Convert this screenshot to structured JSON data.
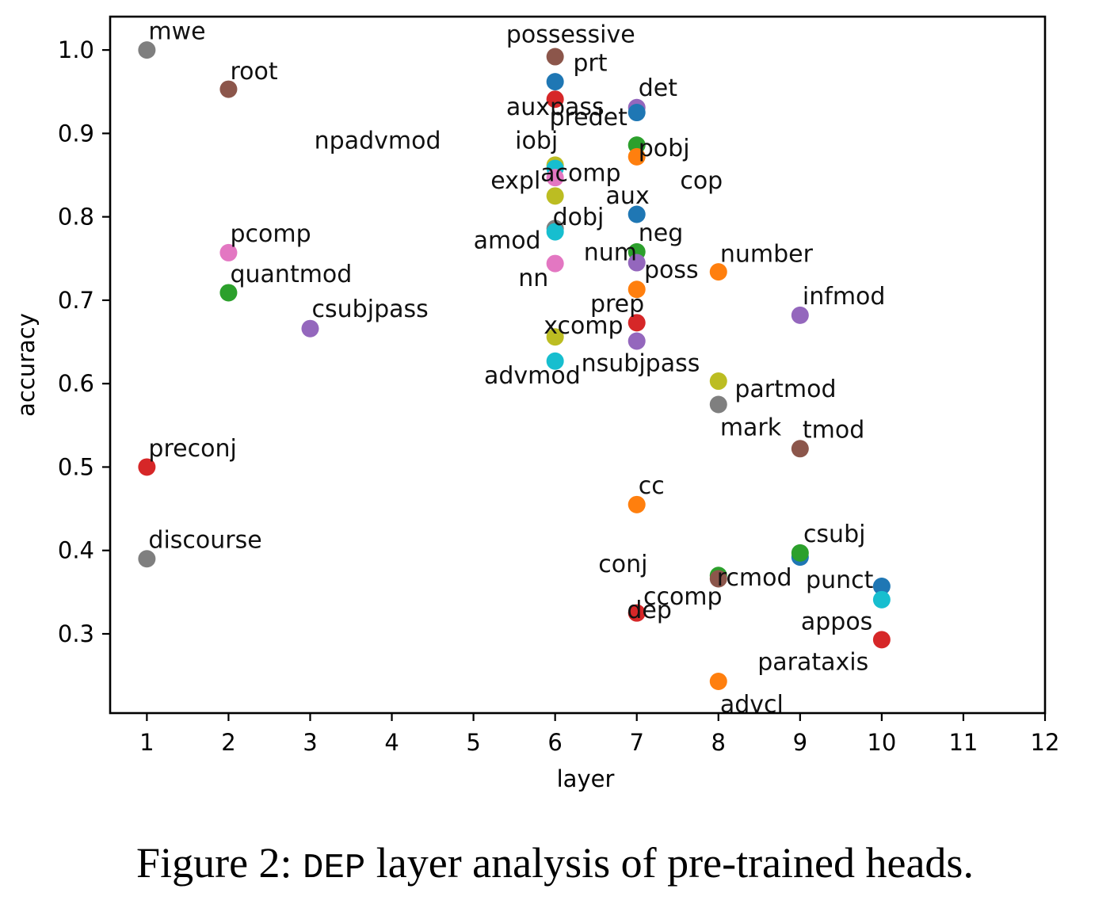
{
  "chart_data": {
    "type": "scatter",
    "title": "",
    "xlabel": "layer",
    "ylabel": "accuracy",
    "xlim": [
      0.55,
      12
    ],
    "ylim": [
      0.205,
      1.04
    ],
    "xticks": [
      1,
      2,
      3,
      4,
      5,
      6,
      7,
      8,
      9,
      10,
      11,
      12
    ],
    "yticks": [
      0.3,
      0.4,
      0.5,
      0.6,
      0.7,
      0.8,
      0.9,
      1.0
    ],
    "ytick_labels": [
      "0.3",
      "0.4",
      "0.5",
      "0.6",
      "0.7",
      "0.8",
      "0.9",
      "1.0"
    ],
    "points": [
      {
        "label": "mwe",
        "x": 1,
        "y": 1.0,
        "color": "#7f7f7f"
      },
      {
        "label": "preconj",
        "x": 1,
        "y": 0.5,
        "color": "#d62728"
      },
      {
        "label": "discourse",
        "x": 1,
        "y": 0.39,
        "color": "#7f7f7f"
      },
      {
        "label": "root",
        "x": 2,
        "y": 0.953,
        "color": "#8c564b"
      },
      {
        "label": "pcomp",
        "x": 2,
        "y": 0.757,
        "color": "#e377c2"
      },
      {
        "label": "quantmod",
        "x": 2,
        "y": 0.709,
        "color": "#2ca02c"
      },
      {
        "label": "csubjpass",
        "x": 3,
        "y": 0.666,
        "color": "#9467bd"
      },
      {
        "label": "possessive",
        "x": 6,
        "y": 0.992,
        "color": "#8c564b"
      },
      {
        "label": "prt",
        "x": 6,
        "y": 0.962,
        "color": "#1f77b4"
      },
      {
        "label": "auxpass",
        "x": 6,
        "y": 0.941,
        "color": "#d62728"
      },
      {
        "label": "iobj",
        "x": 6,
        "y": 0.862,
        "color": "#bcbd22"
      },
      {
        "label": "npadvmod",
        "x": 6,
        "y": 0.858,
        "color": "#17becf"
      },
      {
        "label": "expl",
        "x": 6,
        "y": 0.847,
        "color": "#e377c2"
      },
      {
        "label": "cop",
        "x": 6,
        "y": 0.825,
        "color": "#bcbd22"
      },
      {
        "label": "dobj",
        "x": 6,
        "y": 0.786,
        "color": "#7f7f7f"
      },
      {
        "label": "amod",
        "x": 6,
        "y": 0.782,
        "color": "#17becf"
      },
      {
        "label": "nn",
        "x": 6,
        "y": 0.744,
        "color": "#e377c2"
      },
      {
        "label": "xcomp",
        "x": 6,
        "y": 0.656,
        "color": "#bcbd22"
      },
      {
        "label": "advmod",
        "x": 6,
        "y": 0.627,
        "color": "#17becf"
      },
      {
        "label": "det",
        "x": 7,
        "y": 0.931,
        "color": "#9467bd"
      },
      {
        "label": "predet",
        "x": 7,
        "y": 0.925,
        "color": "#1f77b4"
      },
      {
        "label": "pobj",
        "x": 7,
        "y": 0.886,
        "color": "#2ca02c"
      },
      {
        "label": "acomp",
        "x": 7,
        "y": 0.872,
        "color": "#ff7f0e"
      },
      {
        "label": "aux",
        "x": 7,
        "y": 0.803,
        "color": "#1f77b4"
      },
      {
        "label": "neg",
        "x": 7,
        "y": 0.758,
        "color": "#2ca02c"
      },
      {
        "label": "num",
        "x": 7,
        "y": 0.745,
        "color": "#9467bd"
      },
      {
        "label": "poss",
        "x": 7,
        "y": 0.713,
        "color": "#ff7f0e"
      },
      {
        "label": "prep",
        "x": 7,
        "y": 0.673,
        "color": "#d62728"
      },
      {
        "label": "nsubjpass",
        "x": 7,
        "y": 0.651,
        "color": "#9467bd"
      },
      {
        "label": "cc",
        "x": 7,
        "y": 0.455,
        "color": "#ff7f0e"
      },
      {
        "label": "dep",
        "x": 7,
        "y": 0.325,
        "color": "#d62728"
      },
      {
        "label": "number",
        "x": 8,
        "y": 0.734,
        "color": "#ff7f0e"
      },
      {
        "label": "partmod",
        "x": 8,
        "y": 0.603,
        "color": "#bcbd22"
      },
      {
        "label": "mark",
        "x": 8,
        "y": 0.575,
        "color": "#7f7f7f"
      },
      {
        "label": "conj",
        "x": 8,
        "y": 0.37,
        "color": "#2ca02c"
      },
      {
        "label": "rcmod",
        "x": 8,
        "y": 0.366,
        "color": "#8c564b"
      },
      {
        "label": "advcl",
        "x": 8,
        "y": 0.243,
        "color": "#ff7f0e"
      },
      {
        "label": "infmod",
        "x": 9,
        "y": 0.682,
        "color": "#9467bd"
      },
      {
        "label": "tmod",
        "x": 9,
        "y": 0.522,
        "color": "#8c564b"
      },
      {
        "label": "csubj",
        "x": 9,
        "y": 0.392,
        "color": "#1f77b4"
      },
      {
        "label": "ccomp",
        "x": 9,
        "y": 0.397,
        "color": "#2ca02c"
      },
      {
        "label": "punct",
        "x": 10,
        "y": 0.357,
        "color": "#1f77b4"
      },
      {
        "label": "appos",
        "x": 10,
        "y": 0.341,
        "color": "#17becf"
      },
      {
        "label": "parataxis",
        "x": 10,
        "y": 0.293,
        "color": "#d62728"
      }
    ],
    "annotation_placement": [
      {
        "label": "mwe",
        "x": 1.02,
        "y": 1.013,
        "anchor": "start"
      },
      {
        "label": "preconj",
        "x": 1.02,
        "y": 0.513,
        "anchor": "start"
      },
      {
        "label": "discourse",
        "x": 1.02,
        "y": 0.403,
        "anchor": "start"
      },
      {
        "label": "root",
        "x": 2.02,
        "y": 0.965,
        "anchor": "start"
      },
      {
        "label": "pcomp",
        "x": 2.02,
        "y": 0.77,
        "anchor": "start"
      },
      {
        "label": "quantmod",
        "x": 2.02,
        "y": 0.722,
        "anchor": "start"
      },
      {
        "label": "csubjpass",
        "x": 3.02,
        "y": 0.68,
        "anchor": "start"
      },
      {
        "label": "possessive",
        "x": 5.4,
        "y": 1.009,
        "anchor": "start"
      },
      {
        "label": "prt",
        "x": 6.22,
        "y": 0.975,
        "anchor": "start"
      },
      {
        "label": "auxpass",
        "x": 5.4,
        "y": 0.922,
        "anchor": "start"
      },
      {
        "label": "iobj",
        "x": 5.51,
        "y": 0.882,
        "anchor": "start"
      },
      {
        "label": "npadvmod",
        "x": 3.05,
        "y": 0.882,
        "anchor": "start"
      },
      {
        "label": "expl",
        "x": 5.21,
        "y": 0.834,
        "anchor": "start"
      },
      {
        "label": "cop",
        "x": 7.53,
        "y": 0.834,
        "anchor": "start"
      },
      {
        "label": "dobj",
        "x": 5.97,
        "y": 0.79,
        "anchor": "start"
      },
      {
        "label": "amod",
        "x": 5.0,
        "y": 0.762,
        "anchor": "start"
      },
      {
        "label": "nn",
        "x": 5.55,
        "y": 0.717,
        "anchor": "start"
      },
      {
        "label": "xcomp",
        "x": 5.86,
        "y": 0.66,
        "anchor": "start"
      },
      {
        "label": "advmod",
        "x": 5.13,
        "y": 0.6,
        "anchor": "start"
      },
      {
        "label": "det",
        "x": 7.02,
        "y": 0.945,
        "anchor": "start"
      },
      {
        "label": "predet",
        "x": 5.93,
        "y": 0.91,
        "anchor": "start"
      },
      {
        "label": "pobj",
        "x": 7.02,
        "y": 0.873,
        "anchor": "start"
      },
      {
        "label": "acomp",
        "x": 5.82,
        "y": 0.843,
        "anchor": "start"
      },
      {
        "label": "aux",
        "x": 6.62,
        "y": 0.816,
        "anchor": "start"
      },
      {
        "label": "neg",
        "x": 7.02,
        "y": 0.771,
        "anchor": "start"
      },
      {
        "label": "num",
        "x": 6.35,
        "y": 0.748,
        "anchor": "start"
      },
      {
        "label": "poss",
        "x": 7.09,
        "y": 0.727,
        "anchor": "start"
      },
      {
        "label": "prep",
        "x": 6.43,
        "y": 0.686,
        "anchor": "start"
      },
      {
        "label": "nsubjpass",
        "x": 6.32,
        "y": 0.615,
        "anchor": "start"
      },
      {
        "label": "cc",
        "x": 7.02,
        "y": 0.468,
        "anchor": "start"
      },
      {
        "label": "dep",
        "x": 6.88,
        "y": 0.319,
        "anchor": "start"
      },
      {
        "label": "number",
        "x": 8.02,
        "y": 0.746,
        "anchor": "start"
      },
      {
        "label": "partmod",
        "x": 8.2,
        "y": 0.584,
        "anchor": "start"
      },
      {
        "label": "mark",
        "x": 8.02,
        "y": 0.538,
        "anchor": "start"
      },
      {
        "label": "conj",
        "x": 6.53,
        "y": 0.374,
        "anchor": "start"
      },
      {
        "label": "rcmod",
        "x": 7.98,
        "y": 0.358,
        "anchor": "start"
      },
      {
        "label": "advcl",
        "x": 8.02,
        "y": 0.206,
        "anchor": "start"
      },
      {
        "label": "infmod",
        "x": 9.03,
        "y": 0.695,
        "anchor": "start"
      },
      {
        "label": "tmod",
        "x": 9.03,
        "y": 0.535,
        "anchor": "start"
      },
      {
        "label": "csubj",
        "x": 9.04,
        "y": 0.41,
        "anchor": "start"
      },
      {
        "label": "ccomp",
        "x": 7.08,
        "y": 0.335,
        "anchor": "start"
      },
      {
        "label": "punct",
        "x": 9.07,
        "y": 0.355,
        "anchor": "start"
      },
      {
        "label": "appos",
        "x": 9.01,
        "y": 0.305,
        "anchor": "start"
      },
      {
        "label": "parataxis",
        "x": 8.48,
        "y": 0.257,
        "anchor": "start"
      }
    ]
  },
  "caption": {
    "prefix": "Figure 2: ",
    "code": "DEP",
    "suffix": " layer analysis of pre-trained heads."
  }
}
